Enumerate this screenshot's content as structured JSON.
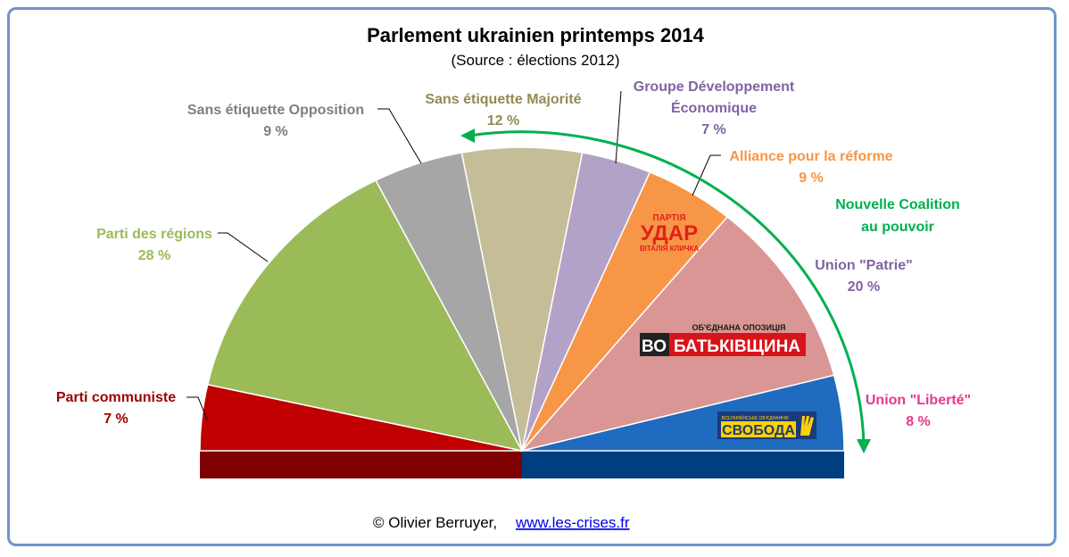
{
  "chart_data": {
    "type": "pie",
    "style": "half-donut parliament",
    "title": "Parlement ukrainien printemps 2014",
    "subtitle": "(Source : élections 2012)",
    "categories": [
      "Parti communiste",
      "Parti des régions",
      "Sans étiquette Opposition",
      "Sans étiquette Majorité",
      "Groupe Développement Économique",
      "Alliance pour la réforme",
      "Union \"Patrie\"",
      "Union \"Liberté\""
    ],
    "values": [
      7,
      28,
      9,
      12,
      7,
      9,
      20,
      8
    ],
    "value_labels": [
      "7 %",
      "28 %",
      "9 %",
      "12 %",
      "7 %",
      "9 %",
      "20 %",
      "8 %"
    ],
    "colors": [
      "#c00000",
      "#9bbb59",
      "#a6a6a6",
      "#c4bd97",
      "#b3a2c7",
      "#f79646",
      "#d99694",
      "#1f6bbf"
    ],
    "label_colors": [
      "#a00000",
      "#9bbb59",
      "#7f7f7f",
      "#948a54",
      "#8064a2",
      "#f79646",
      "#8064a2",
      "#e6398c"
    ],
    "annotation": {
      "text_line1": "Nouvelle Coalition",
      "text_line2": "au pouvoir",
      "color": "#00b050"
    },
    "logos": {
      "udar_top": "ПАРТІЯ",
      "udar_main": "УДАР",
      "udar_bottom": "ВІТАЛІЯ КЛИЧКА",
      "bat_top": "ОБ'ЄДНАНА ОПОЗИЦІЯ",
      "bat_vo": "ВО",
      "bat_main": "БАТЬКІВЩИНА",
      "svoboda_top": "ВСЕУКРАЇНСЬКЕ ОБ'ЄДНАННЯ",
      "svoboda_main": "СВОБОДА"
    }
  },
  "footer": {
    "credit": "© Olivier Berruyer,",
    "link": "www.les-crises.fr"
  }
}
